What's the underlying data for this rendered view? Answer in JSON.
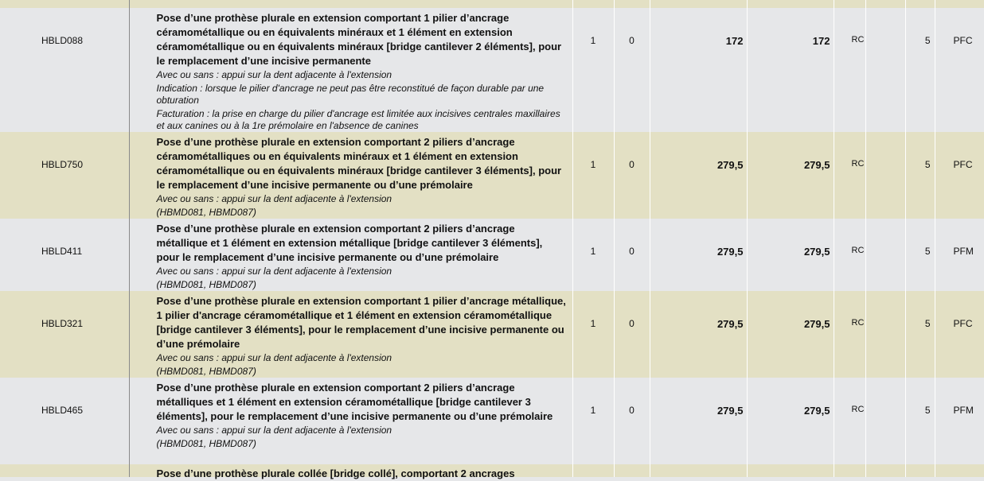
{
  "colors": {
    "row_gray": "#e6e7e9",
    "row_olive": "#e3e0c4"
  },
  "rows": [
    {
      "code": "HBLD088",
      "title": "Pose d’une prothèse plurale en extension comportant 1 pilier d’ancrage céramométallique ou en équivalents minéraux et 1 élément en extension céramométallique ou en équivalents minéraux [bridge cantilever 2 éléments], pour le remplacement d’une incisive permanente",
      "notes": [
        "Avec ou sans : appui sur la dent adjacente à l'extension",
        "Indication : lorsque le pilier d'ancrage ne peut pas être reconstitué de façon durable par une obturation",
        "Facturation : la prise en charge du pilier d'ancrage est limitée aux incisives centrales maxillaires et aux canines ou à la 1re prémolaire en l'absence de canines"
      ],
      "c1": "1",
      "c2": "0",
      "amount1": "172",
      "amount2": "172",
      "rc": "RC",
      "c3": "",
      "c4": "5",
      "cat": "PFC",
      "tone": "gray"
    },
    {
      "code": "HBLD750",
      "title": "Pose d’une prothèse plurale en extension comportant 2 piliers d’ancrage céramométalliques ou en équivalents minéraux et 1 élément en extension céramométallique ou en équivalents minéraux  [bridge cantilever 3 éléments], pour le remplacement d’une incisive permanente ou d’une prémolaire",
      "notes": [
        "Avec ou sans : appui sur la dent adjacente à l'extension",
        "(HBMD081, HBMD087)"
      ],
      "c1": "1",
      "c2": "0",
      "amount1": "279,5",
      "amount2": "279,5",
      "rc": "RC",
      "c3": "",
      "c4": "5",
      "cat": "PFC",
      "tone": "olive"
    },
    {
      "code": "HBLD411",
      "title": "Pose d’une prothèse plurale en extension comportant 2 piliers d’ancrage métallique et 1 élément en extension métallique [bridge cantilever 3 éléments], pour le remplacement d’une incisive permanente ou d’une prémolaire",
      "notes": [
        "Avec ou sans : appui sur la dent adjacente à l'extension",
        "(HBMD081, HBMD087)"
      ],
      "c1": "1",
      "c2": "0",
      "amount1": "279,5",
      "amount2": "279,5",
      "rc": "RC",
      "c3": "",
      "c4": "5",
      "cat": "PFM",
      "tone": "gray"
    },
    {
      "code": "HBLD321",
      "title": "Pose d’une prothèse plurale en extension comportant 1 pilier d’ancrage métallique, 1 pilier d'ancrage céramométallique  et 1 élément en extension céramométallique [bridge cantilever 3 éléments], pour le remplacement d’une incisive permanente ou d’une prémolaire",
      "notes": [
        "Avec ou sans : appui sur la dent adjacente à l'extension",
        "(HBMD081, HBMD087)"
      ],
      "c1": "1",
      "c2": "0",
      "amount1": "279,5",
      "amount2": "279,5",
      "rc": "RC",
      "c3": "",
      "c4": "5",
      "cat": "PFC",
      "tone": "olive"
    },
    {
      "code": "HBLD465",
      "title": "Pose d’une prothèse plurale en extension comportant 2 piliers d’ancrage métalliques et 1 élément en extension céramométallique [bridge cantilever 3 éléments],  pour le remplacement d’une incisive permanente ou d’une prémolaire",
      "notes": [
        "Avec ou sans : appui sur la dent adjacente à l'extension",
        "(HBMD081, HBMD087)"
      ],
      "c1": "1",
      "c2": "0",
      "amount1": "279,5",
      "amount2": "279,5",
      "rc": "RC",
      "c3": "",
      "c4": "5",
      "cat": "PFM",
      "tone": "gray"
    }
  ],
  "partial_next_title": "Pose d’une prothèse plurale collée [bridge collé], comportant 2 ancrages"
}
